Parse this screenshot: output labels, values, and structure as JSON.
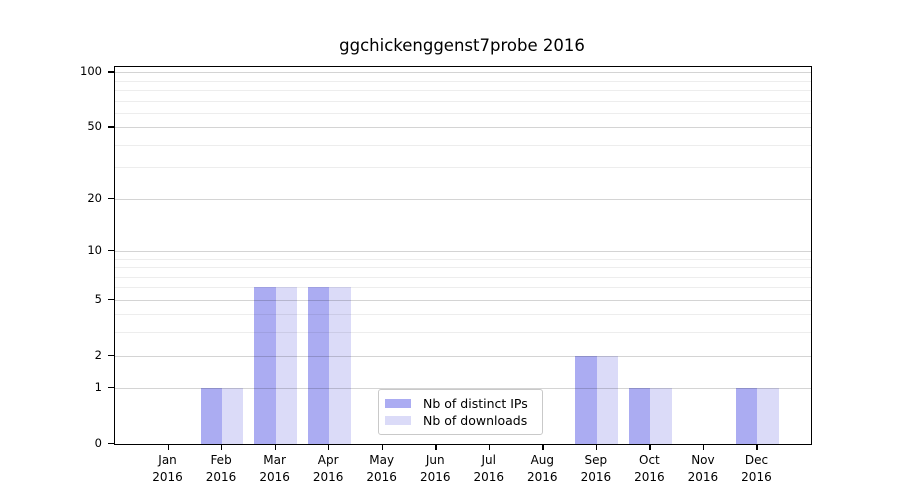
{
  "figure": {
    "background": "#ffffff"
  },
  "chart_data": {
    "type": "bar",
    "title": "ggchickenggenst7probe 2016",
    "categories": [
      "Jan 2016",
      "Feb 2016",
      "Mar 2016",
      "Apr 2016",
      "May 2016",
      "Jun 2016",
      "Jul 2016",
      "Aug 2016",
      "Sep 2016",
      "Oct 2016",
      "Nov 2016",
      "Dec 2016"
    ],
    "x_tick_month_labels": [
      "Jan",
      "Feb",
      "Mar",
      "Apr",
      "May",
      "Jun",
      "Jul",
      "Aug",
      "Sep",
      "Oct",
      "Nov",
      "Dec"
    ],
    "x_tick_year_label": "2016",
    "series": [
      {
        "name": "Nb of distinct IPs",
        "color": "#abacf2",
        "values": [
          0,
          1,
          6,
          6,
          0,
          0,
          0,
          0,
          2,
          1,
          0,
          1
        ]
      },
      {
        "name": "Nb of downloads",
        "color": "#dbdbf8",
        "values": [
          0,
          1,
          6,
          6,
          0,
          0,
          0,
          0,
          2,
          1,
          0,
          1
        ]
      }
    ],
    "yscale": "log1p",
    "ylim": [
      0,
      107
    ],
    "yticks_major": [
      0,
      1,
      2,
      5,
      10,
      20,
      50,
      100
    ],
    "yticks_minor": [
      3,
      4,
      6,
      7,
      8,
      9,
      30,
      40,
      60,
      70,
      80,
      90
    ],
    "grid": "horizontal",
    "legend_position": "lower-center-inside",
    "colors": {
      "grid_major": "#d4d4d4",
      "grid_minor": "#ededed",
      "axis": "#000000",
      "text": "#000000",
      "background": "#ffffff"
    }
  }
}
